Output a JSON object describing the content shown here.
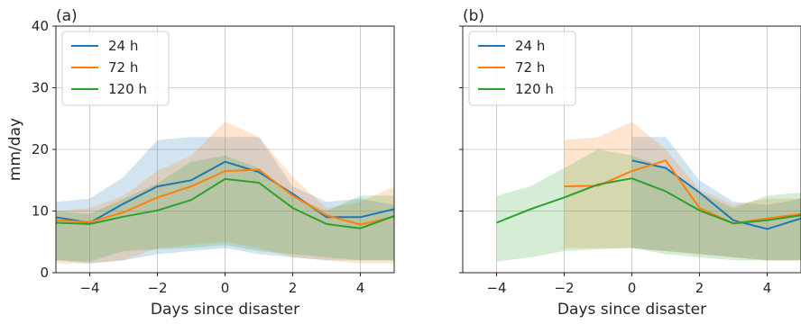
{
  "chart_data": [
    {
      "type": "line",
      "panel_label": "(a)",
      "xlabel": "Days since disaster",
      "ylabel": "mm/day",
      "xlim": [
        -5,
        5
      ],
      "ylim": [
        0,
        40
      ],
      "xticks": [
        -4,
        -2,
        0,
        2,
        4
      ],
      "yticks": [
        0,
        10,
        20,
        30,
        40
      ],
      "grid": true,
      "legend": "top-left",
      "x": [
        -5,
        -4,
        -3,
        -2,
        -1,
        0,
        1,
        2,
        3,
        4,
        5
      ],
      "series": [
        {
          "name": "24 h",
          "color": "#1f77b4",
          "values": [
            9.0,
            8.1,
            11.2,
            14.0,
            15.0,
            18.0,
            16.3,
            12.8,
            9.0,
            9.0,
            10.3
          ],
          "band_upper": [
            11.5,
            12.0,
            15.5,
            21.5,
            22.0,
            22.0,
            22.0,
            14.0,
            11.5,
            12.0,
            11.0
          ],
          "band_lower": [
            2.0,
            1.5,
            2.0,
            3.0,
            3.5,
            4.0,
            3.0,
            2.5,
            2.0,
            2.0,
            2.0
          ]
        },
        {
          "name": "72 h",
          "color": "#ff7f0e",
          "values": [
            8.5,
            8.2,
            9.8,
            12.2,
            14.0,
            16.5,
            16.7,
            12.5,
            9.3,
            7.8,
            9.1
          ],
          "band_upper": [
            10.0,
            10.5,
            12.5,
            16.5,
            19.0,
            24.5,
            22.0,
            15.5,
            10.5,
            11.5,
            14.0
          ],
          "band_lower": [
            1.5,
            1.5,
            2.0,
            4.0,
            4.5,
            5.0,
            4.0,
            2.5,
            2.0,
            1.5,
            1.5
          ]
        },
        {
          "name": "120 h",
          "color": "#2ca02c",
          "values": [
            8.1,
            7.9,
            9.1,
            10.1,
            11.8,
            15.2,
            14.6,
            10.5,
            7.9,
            7.2,
            9.2
          ],
          "band_upper": [
            10.0,
            9.5,
            12.0,
            14.5,
            18.0,
            19.0,
            17.0,
            12.5,
            10.0,
            12.5,
            12.5
          ],
          "band_lower": [
            2.0,
            1.8,
            3.5,
            3.8,
            4.0,
            4.5,
            3.5,
            3.0,
            2.5,
            2.0,
            2.0
          ]
        }
      ]
    },
    {
      "type": "line",
      "panel_label": "(b)",
      "xlabel": "Days since disaster",
      "ylabel": "",
      "xlim": [
        -5,
        5
      ],
      "ylim": [
        0,
        40
      ],
      "xticks": [
        -4,
        -2,
        0,
        2,
        4
      ],
      "yticks": [
        0,
        10,
        20,
        30,
        40
      ],
      "grid": true,
      "legend": "top-left",
      "series": [
        {
          "name": "24 h",
          "color": "#1f77b4",
          "x": [
            0,
            1,
            2,
            3,
            4,
            5
          ],
          "values": [
            18.2,
            17.0,
            13.0,
            8.5,
            7.1,
            8.8
          ],
          "band_upper": [
            22.0,
            22.0,
            15.0,
            11.5,
            11.0,
            12.0
          ],
          "band_lower": [
            4.0,
            3.5,
            3.0,
            2.5,
            2.0,
            2.0
          ]
        },
        {
          "name": "72 h",
          "color": "#ff7f0e",
          "x": [
            -2,
            -1,
            0,
            1,
            2,
            3,
            4,
            5
          ],
          "values": [
            14.0,
            14.1,
            16.5,
            18.2,
            10.5,
            8.0,
            8.8,
            9.5
          ],
          "band_upper": [
            21.5,
            22.0,
            24.5,
            20.0,
            13.5,
            11.0,
            12.0,
            12.0
          ],
          "band_lower": [
            4.0,
            4.0,
            4.0,
            3.5,
            3.0,
            2.5,
            2.0,
            2.0
          ]
        },
        {
          "name": "120 h",
          "color": "#2ca02c",
          "x": [
            -4,
            -3,
            -2,
            -1,
            0,
            1,
            2,
            3,
            4,
            5
          ],
          "values": [
            8.1,
            10.3,
            12.2,
            14.3,
            15.3,
            13.2,
            10.1,
            8.0,
            8.5,
            9.3
          ],
          "band_upper": [
            12.5,
            14.0,
            17.0,
            20.0,
            19.0,
            17.0,
            13.0,
            10.5,
            12.5,
            13.0
          ],
          "band_lower": [
            1.8,
            2.5,
            3.5,
            3.8,
            4.0,
            3.0,
            2.5,
            2.0,
            2.0,
            2.0
          ]
        }
      ]
    }
  ]
}
